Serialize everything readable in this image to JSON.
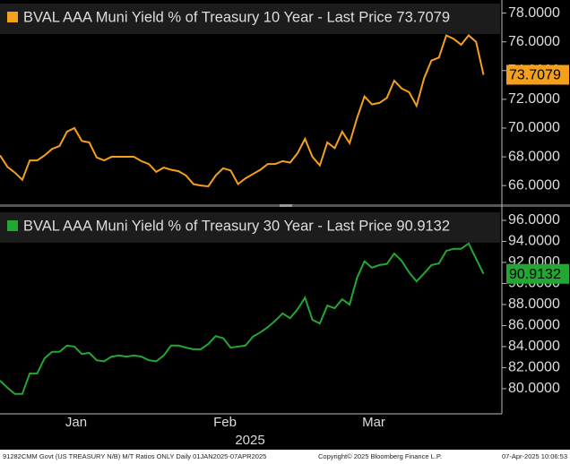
{
  "chart_data": [
    {
      "type": "line",
      "title": "BVAL AAA Muni Yield % of Treasury 10 Year - Last Price 73.7079",
      "color": "#f5a01a",
      "values": [
        68.1,
        67.3,
        66.9,
        66.4,
        67.75,
        67.75,
        68.1,
        68.55,
        68.75,
        69.75,
        70.0,
        69.1,
        69.0,
        67.95,
        67.75,
        68.0,
        68.0,
        68.0,
        68.0,
        67.7,
        67.5,
        66.95,
        67.25,
        67.1,
        67.0,
        66.7,
        66.1,
        66.0,
        65.95,
        66.7,
        67.2,
        67.05,
        66.1,
        66.5,
        66.8,
        67.1,
        67.5,
        67.5,
        67.7,
        67.6,
        68.25,
        69.25,
        68.0,
        67.4,
        69.0,
        68.6,
        69.75,
        68.95,
        70.7,
        72.2,
        71.65,
        71.75,
        72.1,
        73.3,
        72.75,
        72.5,
        71.55,
        73.45,
        74.7,
        74.9,
        76.45,
        76.2,
        75.8,
        76.45,
        76.0,
        73.7079
      ],
      "ylim": [
        64.7,
        78.6
      ],
      "yticks": [
        {
          "value": 66,
          "label": "66.0000"
        },
        {
          "value": 68,
          "label": "68.0000"
        },
        {
          "value": 70,
          "label": "70.0000"
        },
        {
          "value": 72,
          "label": "72.0000"
        },
        {
          "value": 74,
          "label": "74.0000"
        },
        {
          "value": 76,
          "label": "76.0000"
        },
        {
          "value": 78,
          "label": "78.0000"
        }
      ]
    },
    {
      "type": "line",
      "title": "BVAL AAA Muni Yield % of Treasury 30 Year - Last Price 90.9132",
      "color": "#22a832",
      "values": [
        80.77,
        80.09,
        79.5,
        79.5,
        81.45,
        81.45,
        82.9,
        83.5,
        83.5,
        84.1,
        84.0,
        83.3,
        83.4,
        82.7,
        82.6,
        83.05,
        83.15,
        83.05,
        83.15,
        83.05,
        82.7,
        82.6,
        83.15,
        84.1,
        84.1,
        83.9,
        83.75,
        83.75,
        84.25,
        85.0,
        84.8,
        83.9,
        84.0,
        84.1,
        84.95,
        85.35,
        85.85,
        86.45,
        87.15,
        86.7,
        87.55,
        88.65,
        86.55,
        86.2,
        87.9,
        87.65,
        88.5,
        88.0,
        90.55,
        92.1,
        91.5,
        91.75,
        91.85,
        92.85,
        92.15,
        91.05,
        90.2,
        90.95,
        91.75,
        91.9,
        93.1,
        93.3,
        93.3,
        93.8,
        92.35,
        90.9132
      ],
      "categories": [
        null,
        null,
        null,
        null,
        null,
        null,
        null,
        null,
        null,
        null,
        "Jan",
        null,
        null,
        null,
        null,
        null,
        null,
        null,
        null,
        null,
        null,
        null,
        null,
        null,
        null,
        null,
        null,
        null,
        null,
        null,
        "Feb",
        null,
        null,
        null,
        null,
        null,
        null,
        null,
        null,
        null,
        null,
        null,
        null,
        null,
        null,
        null,
        null,
        null,
        null,
        null,
        "Mar",
        null,
        null,
        null,
        null,
        null,
        null,
        null,
        null,
        null,
        null,
        null,
        null,
        null,
        null,
        null
      ],
      "xlabel": "2025",
      "ylim": [
        77.95,
        96.85
      ],
      "yticks": [
        {
          "value": 80,
          "label": "80.0000"
        },
        {
          "value": 82,
          "label": "82.0000"
        },
        {
          "value": 84,
          "label": "84.0000"
        },
        {
          "value": 86,
          "label": "86.0000"
        },
        {
          "value": 88,
          "label": "88.0000"
        },
        {
          "value": 90,
          "label": "90.0000"
        },
        {
          "value": 92,
          "label": "92.0000"
        },
        {
          "value": 94,
          "label": "94.0000"
        },
        {
          "value": 96,
          "label": "96.0000"
        }
      ]
    }
  ],
  "footer": {
    "left": "91282CMM Govt (US TREASURY N/B) M/T Ratios ONLY  Daily 01JAN2025-07APR2025",
    "center": "Copyright© 2025 Bloomberg Finance L.P.",
    "right": "07-Apr-2025 10:06:53"
  }
}
